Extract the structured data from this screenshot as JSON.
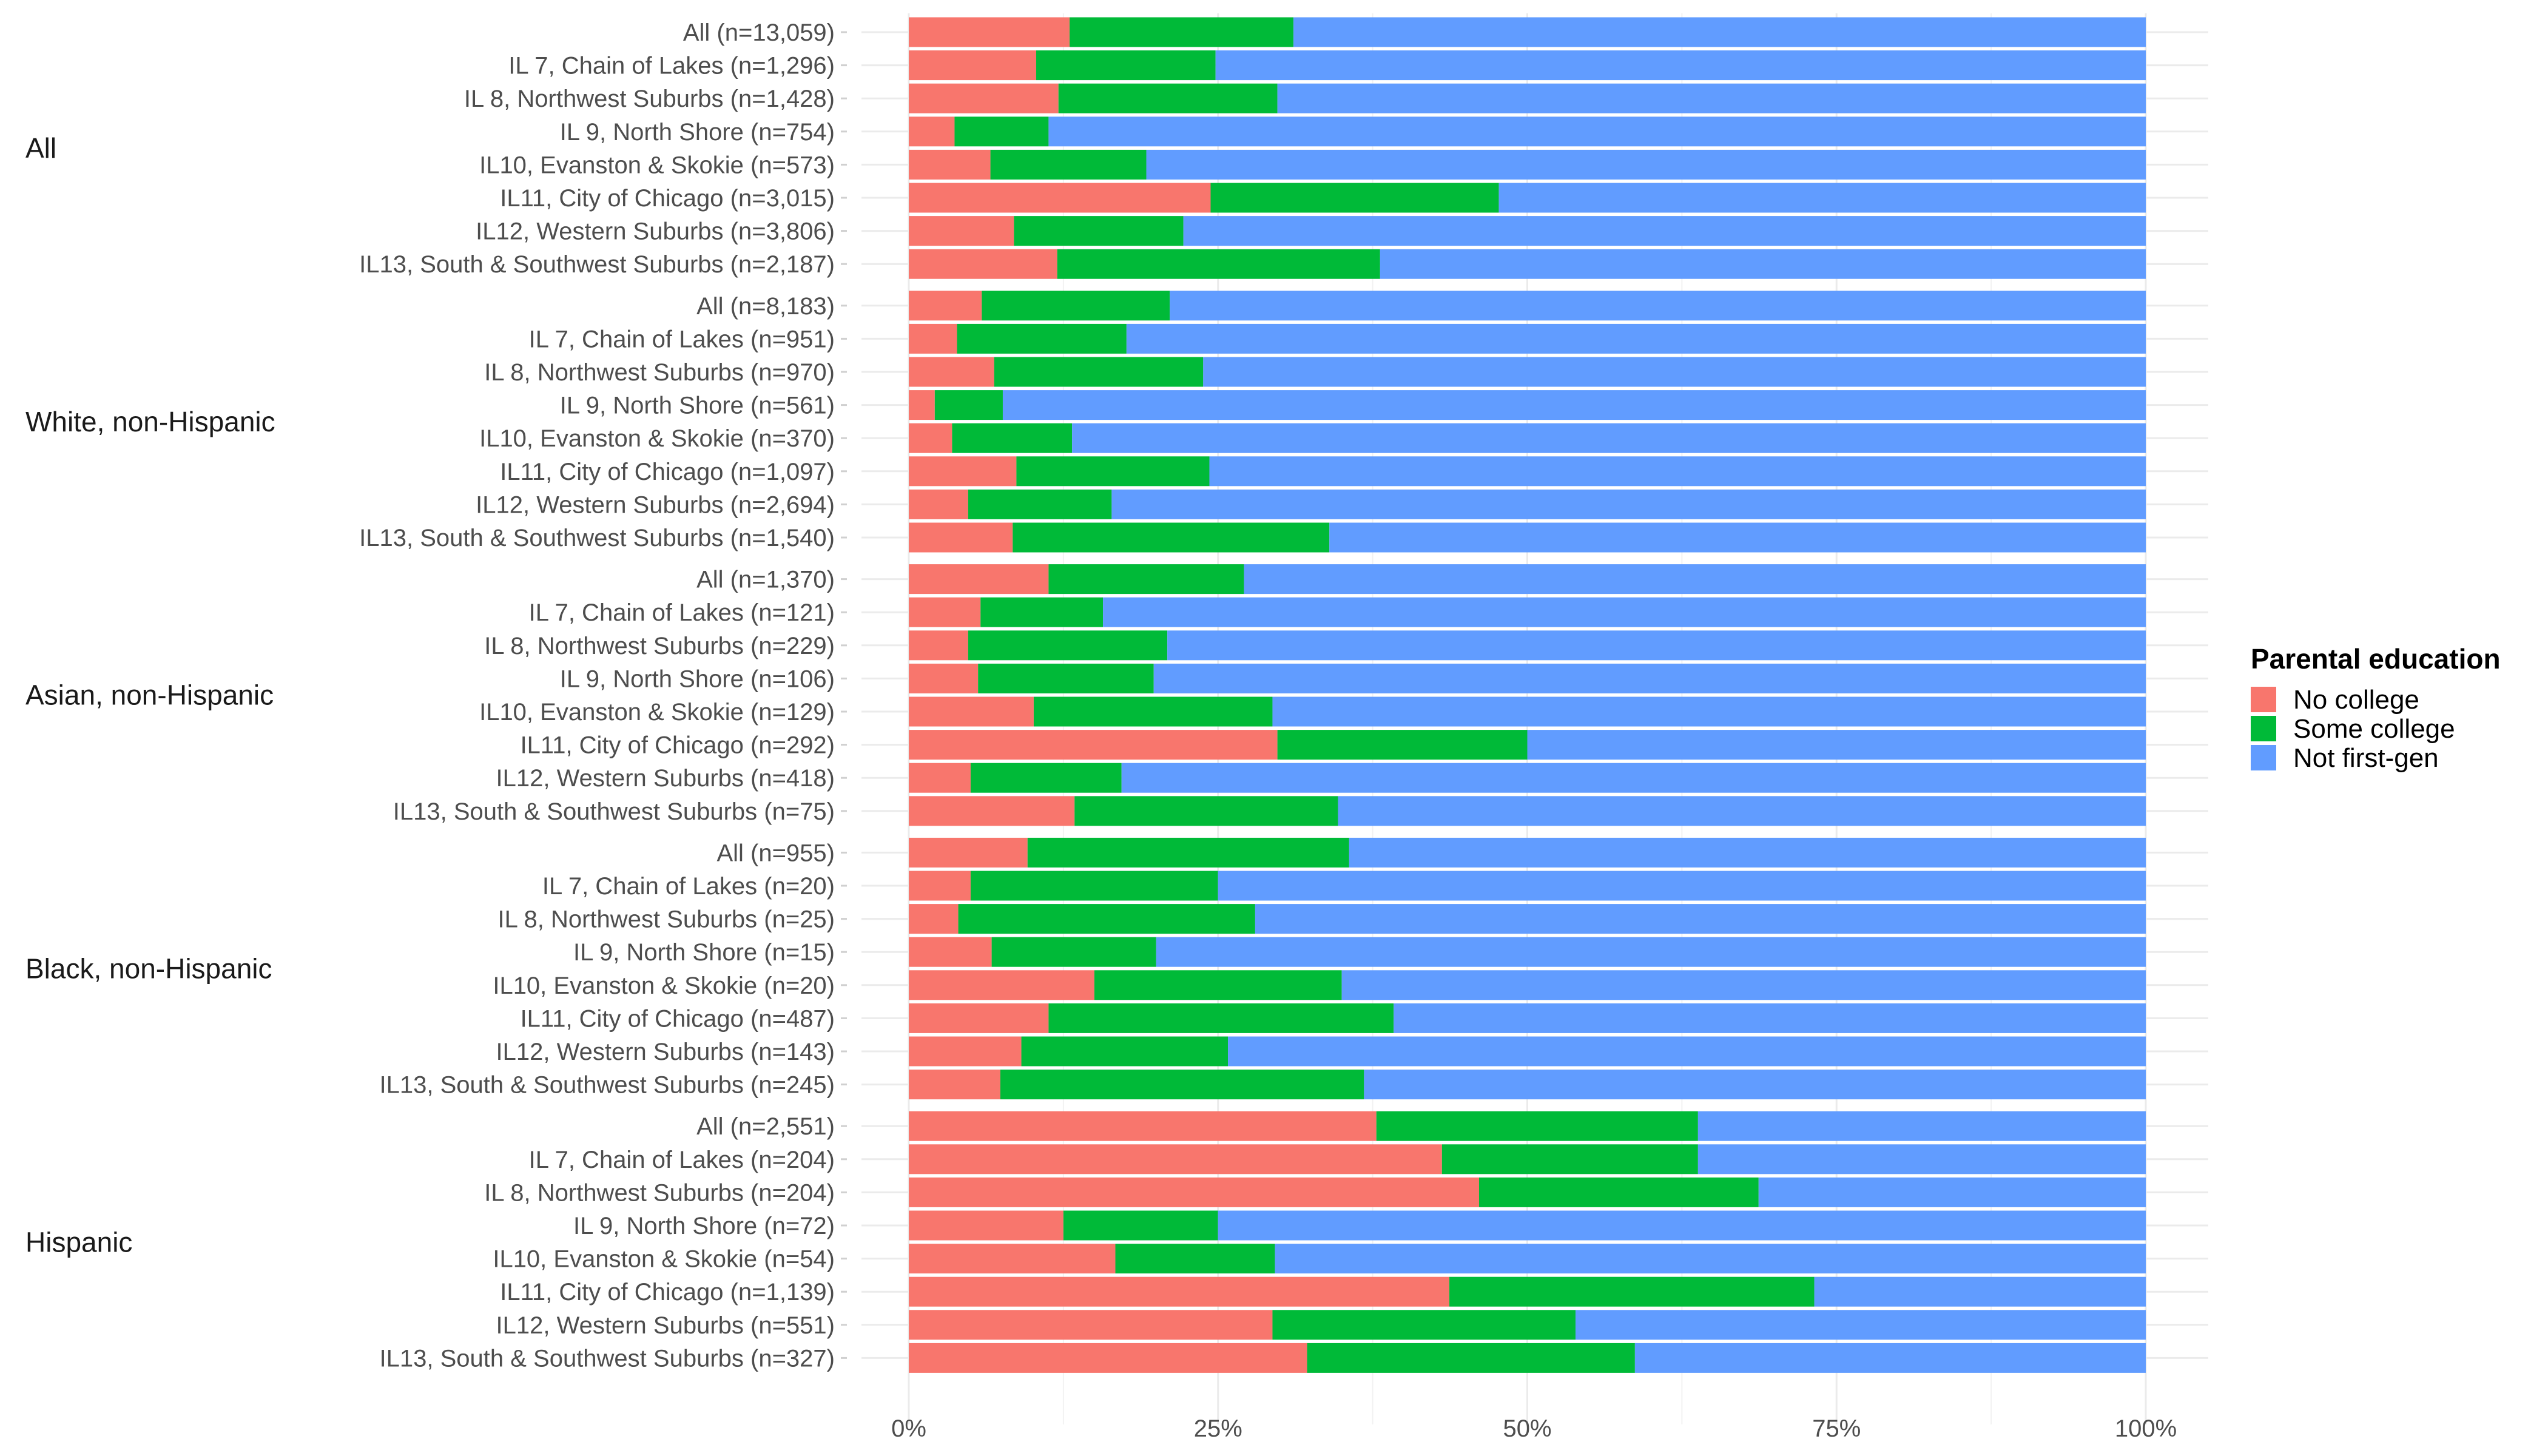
{
  "chart_data": {
    "type": "bar",
    "orientation": "horizontal",
    "stacked": "percent",
    "title": "",
    "xlabel": "",
    "ylabel": "",
    "xlim": [
      0,
      100
    ],
    "x_ticks": [
      "0%",
      "25%",
      "50%",
      "75%",
      "100%"
    ],
    "grid": true,
    "legend": {
      "title": "Parental education",
      "position": "right",
      "entries": [
        {
          "name": "No college",
          "color": "#F8766D"
        },
        {
          "name": "Some college",
          "color": "#00BA38"
        },
        {
          "name": "Not first-gen",
          "color": "#619CFF"
        }
      ]
    },
    "series_names": [
      "No college",
      "Some college",
      "Not first-gen"
    ],
    "groups": [
      {
        "label": "All",
        "rows": [
          {
            "label": "All (n=13,059)",
            "values": [
              13.0,
              18.1,
              68.9
            ]
          },
          {
            "label": "IL 7, Chain of Lakes (n=1,296)",
            "values": [
              10.3,
              14.5,
              75.2
            ]
          },
          {
            "label": "IL 8, Northwest Suburbs (n=1,428)",
            "values": [
              12.1,
              17.7,
              70.2
            ]
          },
          {
            "label": "IL 9, North Shore (n=754)",
            "values": [
              3.7,
              7.6,
              88.7
            ]
          },
          {
            "label": "IL10, Evanston & Skokie (n=573)",
            "values": [
              6.6,
              12.6,
              80.8
            ]
          },
          {
            "label": "IL11, City of Chicago (n=3,015)",
            "values": [
              24.4,
              23.3,
              52.3
            ]
          },
          {
            "label": "IL12, Western Suburbs (n=3,806)",
            "values": [
              8.5,
              13.7,
              77.8
            ]
          },
          {
            "label": "IL13, South & Southwest Suburbs (n=2,187)",
            "values": [
              12.0,
              26.1,
              61.9
            ]
          }
        ]
      },
      {
        "label": "White, non-Hispanic",
        "rows": [
          {
            "label": "All (n=8,183)",
            "values": [
              5.9,
              15.2,
              78.9
            ]
          },
          {
            "label": "IL 7, Chain of Lakes (n=951)",
            "values": [
              3.9,
              13.7,
              82.4
            ]
          },
          {
            "label": "IL 8, Northwest Suburbs (n=970)",
            "values": [
              6.9,
              16.9,
              76.2
            ]
          },
          {
            "label": "IL 9, North Shore (n=561)",
            "values": [
              2.1,
              5.5,
              92.4
            ]
          },
          {
            "label": "IL10, Evanston & Skokie (n=370)",
            "values": [
              3.5,
              9.7,
              86.8
            ]
          },
          {
            "label": "IL11, City of Chicago (n=1,097)",
            "values": [
              8.7,
              15.6,
              75.7
            ]
          },
          {
            "label": "IL12, Western Suburbs (n=2,694)",
            "values": [
              4.8,
              11.6,
              83.6
            ]
          },
          {
            "label": "IL13, South & Southwest Suburbs (n=1,540)",
            "values": [
              8.4,
              25.6,
              66.0
            ]
          }
        ]
      },
      {
        "label": "Asian, non-Hispanic",
        "rows": [
          {
            "label": "All (n=1,370)",
            "values": [
              11.3,
              15.8,
              72.9
            ]
          },
          {
            "label": "IL 7, Chain of Lakes (n=121)",
            "values": [
              5.8,
              9.9,
              84.3
            ]
          },
          {
            "label": "IL 8, Northwest Suburbs (n=229)",
            "values": [
              4.8,
              16.1,
              79.1
            ]
          },
          {
            "label": "IL 9, North Shore (n=106)",
            "values": [
              5.6,
              14.2,
              80.2
            ]
          },
          {
            "label": "IL10, Evanston & Skokie (n=129)",
            "values": [
              10.1,
              19.3,
              70.6
            ]
          },
          {
            "label": "IL11, City of Chicago (n=292)",
            "values": [
              29.8,
              20.2,
              50.0
            ]
          },
          {
            "label": "IL12, Western Suburbs (n=418)",
            "values": [
              5.0,
              12.2,
              82.8
            ]
          },
          {
            "label": "IL13, South & Southwest Suburbs (n=75)",
            "values": [
              13.4,
              21.3,
              65.3
            ]
          }
        ]
      },
      {
        "label": "Black, non-Hispanic",
        "rows": [
          {
            "label": "All (n=955)",
            "values": [
              9.6,
              26.0,
              64.4
            ]
          },
          {
            "label": "IL 7, Chain of Lakes (n=20)",
            "values": [
              5.0,
              20.0,
              75.0
            ]
          },
          {
            "label": "IL 8, Northwest Suburbs (n=25)",
            "values": [
              4.0,
              24.0,
              72.0
            ]
          },
          {
            "label": "IL 9, North Shore (n=15)",
            "values": [
              6.7,
              13.3,
              80.0
            ]
          },
          {
            "label": "IL10, Evanston & Skokie (n=20)",
            "values": [
              15.0,
              20.0,
              65.0
            ]
          },
          {
            "label": "IL11, City of Chicago (n=487)",
            "values": [
              11.3,
              27.9,
              60.8
            ]
          },
          {
            "label": "IL12, Western Suburbs (n=143)",
            "values": [
              9.1,
              16.7,
              74.2
            ]
          },
          {
            "label": "IL13, South & Southwest Suburbs (n=245)",
            "values": [
              7.4,
              29.4,
              63.2
            ]
          }
        ]
      },
      {
        "label": "Hispanic",
        "rows": [
          {
            "label": "All (n=2,551)",
            "values": [
              37.8,
              26.0,
              36.2
            ]
          },
          {
            "label": "IL 7, Chain of Lakes (n=204)",
            "values": [
              43.1,
              20.7,
              36.2
            ]
          },
          {
            "label": "IL 8, Northwest Suburbs (n=204)",
            "values": [
              46.1,
              22.6,
              31.3
            ]
          },
          {
            "label": "IL 9, North Shore (n=72)",
            "values": [
              12.5,
              12.5,
              75.0
            ]
          },
          {
            "label": "IL10, Evanston & Skokie (n=54)",
            "values": [
              16.7,
              12.9,
              70.4
            ]
          },
          {
            "label": "IL11, City of Chicago (n=1,139)",
            "values": [
              43.7,
              29.5,
              26.8
            ]
          },
          {
            "label": "IL12, Western Suburbs (n=551)",
            "values": [
              29.4,
              24.5,
              46.1
            ]
          },
          {
            "label": "IL13, South & Southwest Suburbs (n=327)",
            "values": [
              32.2,
              26.5,
              41.3
            ]
          }
        ]
      }
    ]
  }
}
